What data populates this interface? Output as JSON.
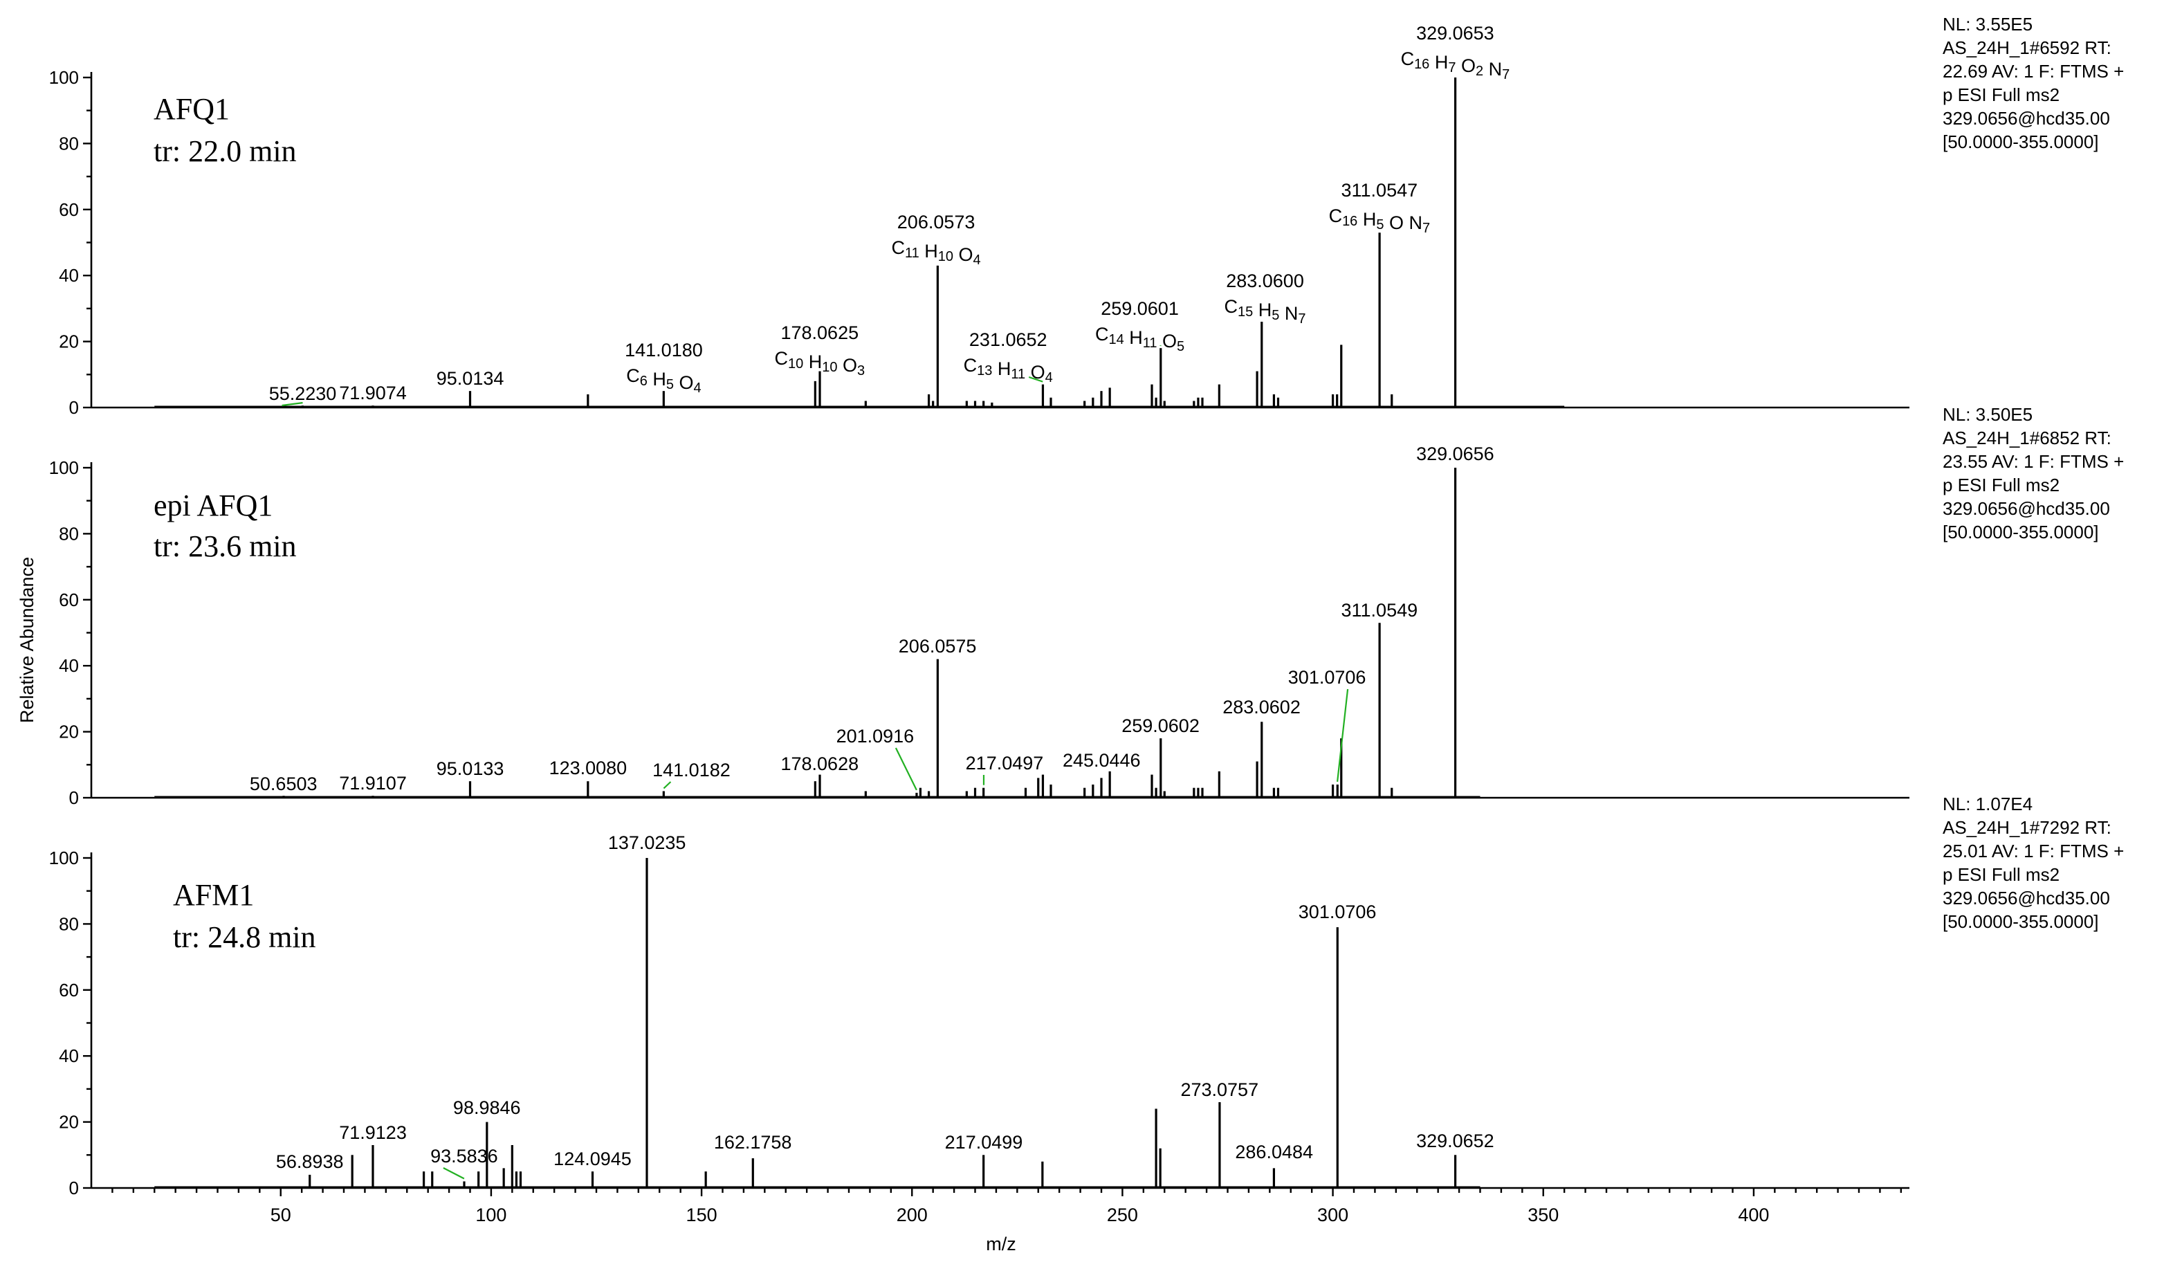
{
  "chart_data": {
    "type": "spectrum",
    "ylabel": "Relative Abundance",
    "xlabel": "m/z",
    "xlim": [
      5,
      437
    ],
    "ylim": [
      0,
      100
    ],
    "x_ticks": [
      "50",
      "100",
      "150",
      "200",
      "250",
      "300",
      "350",
      "400"
    ],
    "y_ticks": [
      "0",
      "20",
      "40",
      "60",
      "80",
      "100"
    ],
    "panels": [
      {
        "name": "AFQ1",
        "compound": "AFQ1",
        "retention": "tr: 22.0 min",
        "info": [
          "NL: 3.55E5",
          "AS_24H_1#6592 RT:",
          "22.69 AV: 1 F: FTMS +",
          "p ESI Full ms2",
          "329.0656@hcd35.00",
          "[50.0000-355.0000]"
        ],
        "labels": [
          {
            "text": "55.2230",
            "mz": 55.223
          },
          {
            "text": "71.9074",
            "mz": 71.9074
          },
          {
            "text": "95.0134",
            "mz": 95.0134
          },
          {
            "text": "141.0180",
            "mz": 141.018,
            "formula": "C6 H5 O4"
          },
          {
            "text": "178.0625",
            "mz": 178.0625,
            "formula": "C10 H10 O3"
          },
          {
            "text": "206.0573",
            "mz": 206.0573,
            "formula": "C11 H10 O4"
          },
          {
            "text": "231.0652",
            "mz": 231.0652,
            "formula": "C13 H11 O4"
          },
          {
            "text": "259.0601",
            "mz": 259.0601,
            "formula": "C14 H11 O5"
          },
          {
            "text": "283.0600",
            "mz": 283.06,
            "formula": "C15 H5 N7"
          },
          {
            "text": "311.0547",
            "mz": 311.0547,
            "formula": "C16 H5 O N7"
          },
          {
            "text": "329.0653",
            "mz": 329.0653,
            "formula": "C16 H7 O2 N7"
          }
        ],
        "peaks": [
          [
            55.2,
            0.6
          ],
          [
            71.9,
            0.6
          ],
          [
            95.0,
            5
          ],
          [
            123.0,
            4
          ],
          [
            141.0,
            5
          ],
          [
            177.0,
            8
          ],
          [
            178.1,
            11
          ],
          [
            189.0,
            2
          ],
          [
            204.0,
            4
          ],
          [
            205.0,
            2
          ],
          [
            206.1,
            43
          ],
          [
            213.0,
            2
          ],
          [
            215.0,
            2
          ],
          [
            217.0,
            2
          ],
          [
            219.0,
            1.5
          ],
          [
            231.1,
            7
          ],
          [
            233.0,
            3
          ],
          [
            241.0,
            2
          ],
          [
            243.0,
            3
          ],
          [
            245.0,
            5
          ],
          [
            247.0,
            6
          ],
          [
            257.0,
            7
          ],
          [
            258.0,
            3
          ],
          [
            259.1,
            18
          ],
          [
            260.0,
            2
          ],
          [
            267.0,
            2
          ],
          [
            268.0,
            3
          ],
          [
            269.0,
            3
          ],
          [
            273.0,
            7
          ],
          [
            282.0,
            11
          ],
          [
            283.1,
            26
          ],
          [
            286.0,
            4
          ],
          [
            287.0,
            3
          ],
          [
            300.0,
            4
          ],
          [
            301.0,
            4
          ],
          [
            302.0,
            19
          ],
          [
            311.1,
            53
          ],
          [
            314.0,
            4
          ],
          [
            329.1,
            100
          ]
        ]
      },
      {
        "name": "epi-AFQ1",
        "compound": "epi AFQ1",
        "retention": "tr: 23.6 min",
        "info": [
          "NL: 3.50E5",
          "AS_24H_1#6852 RT:",
          "23.55 AV: 1 F: FTMS +",
          "p ESI Full ms2",
          "329.0656@hcd35.00",
          "[50.0000-355.0000]"
        ],
        "labels": [
          {
            "text": "50.6503",
            "mz": 50.6503
          },
          {
            "text": "71.9107",
            "mz": 71.9107
          },
          {
            "text": "95.0133",
            "mz": 95.0133
          },
          {
            "text": "123.0080",
            "mz": 123.008
          },
          {
            "text": "141.0182",
            "mz": 141.0182
          },
          {
            "text": "178.0628",
            "mz": 178.0628
          },
          {
            "text": "201.0916",
            "mz": 201.0916
          },
          {
            "text": "206.0575",
            "mz": 206.0575
          },
          {
            "text": "217.0497",
            "mz": 217.0497
          },
          {
            "text": "245.0446",
            "mz": 245.0446
          },
          {
            "text": "259.0602",
            "mz": 259.0602
          },
          {
            "text": "283.0602",
            "mz": 283.0602
          },
          {
            "text": "301.0706",
            "mz": 301.0706
          },
          {
            "text": "311.0549",
            "mz": 311.0549
          },
          {
            "text": "329.0656",
            "mz": 329.0656
          }
        ],
        "peaks": [
          [
            50.7,
            0.6
          ],
          [
            71.9,
            0.6
          ],
          [
            95.0,
            5
          ],
          [
            123.0,
            5
          ],
          [
            141.0,
            2
          ],
          [
            177.0,
            5
          ],
          [
            178.1,
            7
          ],
          [
            189.0,
            2
          ],
          [
            201.1,
            1.5
          ],
          [
            202.0,
            3
          ],
          [
            204.0,
            2
          ],
          [
            206.1,
            42
          ],
          [
            213.0,
            2
          ],
          [
            215.0,
            3
          ],
          [
            217.0,
            3
          ],
          [
            227.0,
            3
          ],
          [
            230.0,
            6
          ],
          [
            231.1,
            7
          ],
          [
            233.0,
            4
          ],
          [
            241.0,
            3
          ],
          [
            243.0,
            4
          ],
          [
            245.0,
            6
          ],
          [
            247.0,
            8
          ],
          [
            257.0,
            7
          ],
          [
            258.0,
            3
          ],
          [
            259.1,
            18
          ],
          [
            260.0,
            2
          ],
          [
            267.0,
            3
          ],
          [
            268.0,
            3
          ],
          [
            269.0,
            3
          ],
          [
            273.0,
            8
          ],
          [
            282.0,
            11
          ],
          [
            283.1,
            23
          ],
          [
            286.0,
            3
          ],
          [
            287.0,
            3
          ],
          [
            300.0,
            4
          ],
          [
            301.1,
            4
          ],
          [
            302.0,
            18
          ],
          [
            311.1,
            53
          ],
          [
            314.0,
            3
          ],
          [
            329.1,
            100
          ]
        ]
      },
      {
        "name": "AFM1",
        "compound": "AFM1",
        "retention": "tr: 24.8 min",
        "info": [
          "NL: 1.07E4",
          "AS_24H_1#7292 RT:",
          "25.01 AV: 1 F: FTMS +",
          "p ESI Full ms2",
          "329.0656@hcd35.00",
          "[50.0000-355.0000]"
        ],
        "labels": [
          {
            "text": "56.8938",
            "mz": 56.8938
          },
          {
            "text": "71.9123",
            "mz": 71.9123
          },
          {
            "text": "93.5836",
            "mz": 93.5836
          },
          {
            "text": "98.9846",
            "mz": 98.9846
          },
          {
            "text": "124.0945",
            "mz": 124.0945
          },
          {
            "text": "137.0235",
            "mz": 137.0235
          },
          {
            "text": "162.1758",
            "mz": 162.1758
          },
          {
            "text": "217.0499",
            "mz": 217.0499
          },
          {
            "text": "273.0757",
            "mz": 273.0757
          },
          {
            "text": "286.0484",
            "mz": 286.0484
          },
          {
            "text": "301.0706",
            "mz": 301.0706
          },
          {
            "text": "329.0652",
            "mz": 329.0652
          }
        ],
        "peaks": [
          [
            56.9,
            4
          ],
          [
            67.0,
            10
          ],
          [
            71.9,
            13
          ],
          [
            84.0,
            5
          ],
          [
            86.0,
            5
          ],
          [
            93.6,
            2
          ],
          [
            97.0,
            5
          ],
          [
            99.0,
            20
          ],
          [
            103.0,
            6
          ],
          [
            105.0,
            13
          ],
          [
            106.0,
            5
          ],
          [
            107.0,
            5
          ],
          [
            124.1,
            5
          ],
          [
            137.0,
            100
          ],
          [
            151.0,
            5
          ],
          [
            162.2,
            9
          ],
          [
            217.0,
            10
          ],
          [
            231.0,
            8
          ],
          [
            258.0,
            24
          ],
          [
            259.0,
            12
          ],
          [
            273.1,
            26
          ],
          [
            286.0,
            6
          ],
          [
            301.1,
            79
          ],
          [
            329.1,
            10
          ]
        ]
      }
    ]
  }
}
